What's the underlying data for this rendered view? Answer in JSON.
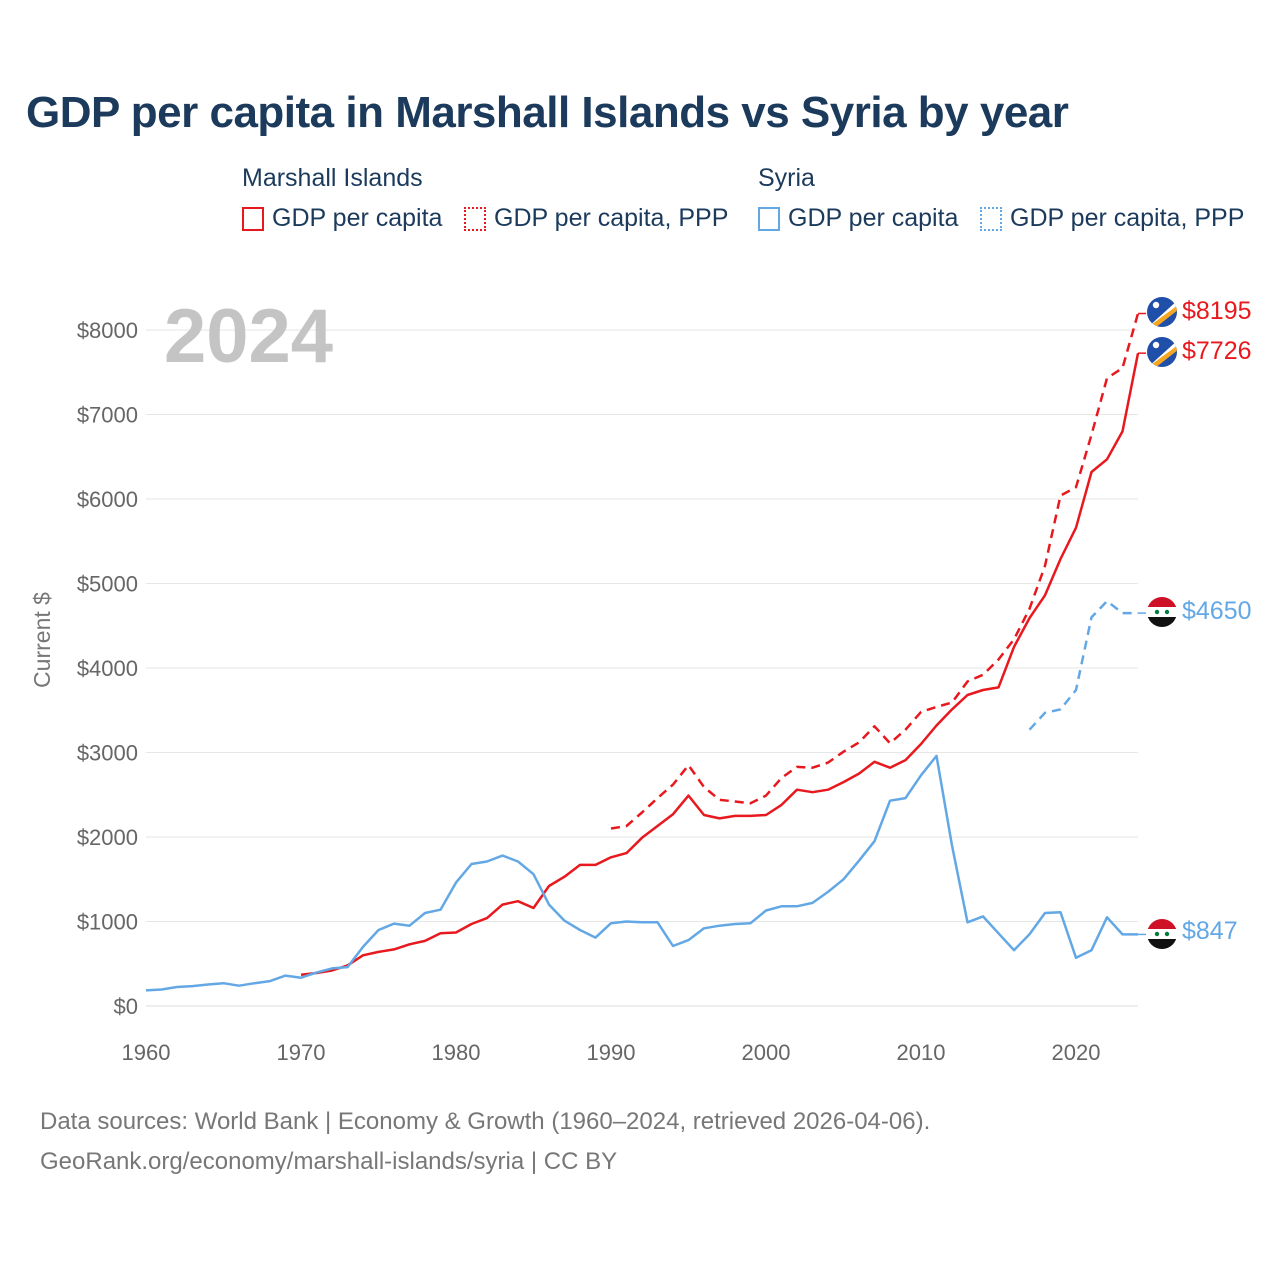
{
  "title": "GDP per capita in Marshall Islands vs Syria by year",
  "legend": {
    "groups": [
      {
        "name": "Marshall Islands",
        "items": [
          "GDP per capita",
          "GDP per capita, PPP"
        ]
      },
      {
        "name": "Syria",
        "items": [
          "GDP per capita",
          "GDP per capita, PPP"
        ]
      }
    ]
  },
  "colors": {
    "marshall": "#e8191e",
    "syria": "#63a8e5",
    "text": "#1b3a5c",
    "grid": "#e6e6e6"
  },
  "source": {
    "line1": "Data sources: World Bank | Economy & Growth (1960–2024, retrieved 2026-04-06).",
    "line2": "GeoRank.org/economy/marshall-islands/syria | CC BY"
  },
  "chart_data": {
    "type": "line",
    "title": "GDP per capita in Marshall Islands vs Syria by year",
    "year_label": "2024",
    "ylabel": "Current $",
    "xlabel": "",
    "xlim": [
      1960,
      2024
    ],
    "ylim": [
      0,
      8000
    ],
    "x_ticks": [
      1960,
      1970,
      1980,
      1990,
      2000,
      2010,
      2020
    ],
    "y_ticks": [
      0,
      1000,
      2000,
      3000,
      4000,
      5000,
      6000,
      7000,
      8000
    ],
    "y_tick_labels": [
      "$0",
      "$1000",
      "$2000",
      "$3000",
      "$4000",
      "$5000",
      "$6000",
      "$7000",
      "$8000"
    ],
    "grid": true,
    "series": [
      {
        "name": "Marshall Islands GDP per capita",
        "country": "marshall",
        "style": "solid",
        "end_label": "$7726",
        "x": [
          1970,
          1971,
          1972,
          1973,
          1974,
          1975,
          1976,
          1977,
          1978,
          1979,
          1980,
          1981,
          1982,
          1983,
          1984,
          1985,
          1986,
          1987,
          1988,
          1989,
          1990,
          1991,
          1992,
          1993,
          1994,
          1995,
          1996,
          1997,
          1998,
          1999,
          2000,
          2001,
          2002,
          2003,
          2004,
          2005,
          2006,
          2007,
          2008,
          2009,
          2010,
          2011,
          2012,
          2013,
          2014,
          2015,
          2016,
          2017,
          2018,
          2019,
          2020,
          2021,
          2022,
          2023,
          2024
        ],
        "values": [
          370,
          390,
          420,
          480,
          600,
          640,
          670,
          730,
          770,
          860,
          870,
          970,
          1040,
          1200,
          1240,
          1160,
          1420,
          1530,
          1670,
          1670,
          1760,
          1810,
          1990,
          2130,
          2270,
          2490,
          2260,
          2220,
          2250,
          2250,
          2260,
          2380,
          2560,
          2530,
          2560,
          2650,
          2750,
          2890,
          2820,
          2910,
          3100,
          3320,
          3510,
          3680,
          3740,
          3770,
          4250,
          4590,
          4860,
          5290,
          5660,
          6320,
          6470,
          6800,
          7726
        ]
      },
      {
        "name": "Marshall Islands GDP per capita, PPP",
        "country": "marshall",
        "style": "dashed",
        "end_label": "$8195",
        "x": [
          1990,
          1991,
          1992,
          1993,
          1994,
          1995,
          1996,
          1997,
          1998,
          1999,
          2000,
          2001,
          2002,
          2003,
          2004,
          2005,
          2006,
          2007,
          2008,
          2009,
          2010,
          2011,
          2012,
          2013,
          2014,
          2015,
          2016,
          2017,
          2018,
          2019,
          2020,
          2021,
          2022,
          2023,
          2024
        ],
        "values": [
          2100,
          2130,
          2290,
          2460,
          2620,
          2850,
          2590,
          2440,
          2420,
          2400,
          2490,
          2700,
          2830,
          2820,
          2880,
          3010,
          3120,
          3310,
          3110,
          3270,
          3480,
          3540,
          3590,
          3840,
          3920,
          4100,
          4340,
          4700,
          5210,
          6040,
          6140,
          6760,
          7430,
          7550,
          8195
        ]
      },
      {
        "name": "Syria GDP per capita",
        "country": "syria",
        "style": "solid",
        "end_label": "$847",
        "x": [
          1960,
          1961,
          1962,
          1963,
          1964,
          1965,
          1966,
          1967,
          1968,
          1969,
          1970,
          1971,
          1972,
          1973,
          1974,
          1975,
          1976,
          1977,
          1978,
          1979,
          1980,
          1981,
          1982,
          1983,
          1984,
          1985,
          1986,
          1987,
          1988,
          1989,
          1990,
          1991,
          1992,
          1993,
          1994,
          1995,
          1996,
          1997,
          1998,
          1999,
          2000,
          2001,
          2002,
          2003,
          2004,
          2005,
          2006,
          2007,
          2008,
          2009,
          2010,
          2011,
          2012,
          2013,
          2014,
          2015,
          2016,
          2017,
          2018,
          2019,
          2020,
          2021,
          2022,
          2023,
          2024
        ],
        "values": [
          185,
          195,
          225,
          235,
          255,
          270,
          240,
          270,
          295,
          360,
          335,
          395,
          445,
          460,
          700,
          900,
          975,
          950,
          1100,
          1140,
          1460,
          1680,
          1710,
          1780,
          1710,
          1560,
          1200,
          1010,
          900,
          810,
          980,
          1000,
          990,
          990,
          710,
          780,
          920,
          950,
          970,
          980,
          1130,
          1180,
          1180,
          1220,
          1350,
          1500,
          1720,
          1950,
          2430,
          2460,
          2730,
          2960,
          1900,
          990,
          1060,
          860,
          660,
          850,
          1100,
          1110,
          570,
          660,
          1050,
          847,
          847
        ]
      },
      {
        "name": "Syria GDP per capita, PPP",
        "country": "syria",
        "style": "dashed",
        "end_label": "$4650",
        "x": [
          2017,
          2018,
          2019,
          2020,
          2021,
          2022,
          2023,
          2024
        ],
        "values": [
          3270,
          3470,
          3510,
          3740,
          4600,
          4790,
          4650,
          4650
        ]
      }
    ]
  }
}
